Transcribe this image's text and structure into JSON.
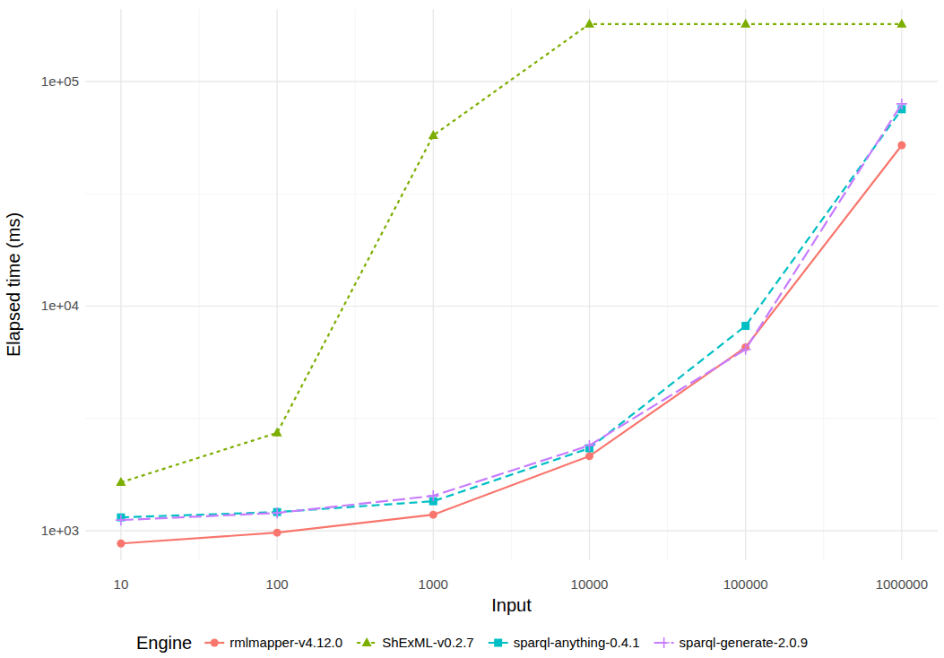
{
  "chart_data": {
    "type": "line",
    "x_label": "Input",
    "y_label": "Elapsed time (ms)",
    "legend_title": "Engine",
    "log": true,
    "grid": true,
    "legend": "bottom",
    "x": [
      10,
      100,
      1000,
      10000,
      100000,
      1000000
    ],
    "xlim": [
      5.9,
      1700000
    ],
    "xticks": [
      10,
      100,
      1000,
      10000,
      100000,
      1000000
    ],
    "ylim": [
      740,
      210000
    ],
    "yticks": [
      {
        "value": 1000,
        "label": "1e+03"
      },
      {
        "value": 10000,
        "label": "1e+04"
      },
      {
        "value": 100000,
        "label": "1e+05"
      }
    ],
    "series": [
      {
        "name": "rmlmapper-v4.12.0",
        "color": "#F8766D",
        "marker": "circle",
        "line_style": "solid",
        "values": [
          879,
          982,
          1180,
          2150,
          6560,
          52000
        ]
      },
      {
        "name": "ShExML-v0.2.7",
        "color": "#7CAE00",
        "marker": "triangle",
        "line_style": "dotted",
        "values": [
          1644,
          2730,
          57500,
          180000,
          180000,
          180000
        ]
      },
      {
        "name": "sparql-anything-0.4.1",
        "color": "#00BFC4",
        "marker": "square",
        "line_style": "dashed",
        "values": [
          1148,
          1213,
          1355,
          2333,
          8170,
          75200
        ]
      },
      {
        "name": "sparql-generate-2.0.9",
        "color": "#C77CFF",
        "marker": "plus",
        "line_style": "longdash",
        "values": [
          1117,
          1202,
          1432,
          2400,
          6420,
          79400
        ]
      }
    ]
  }
}
